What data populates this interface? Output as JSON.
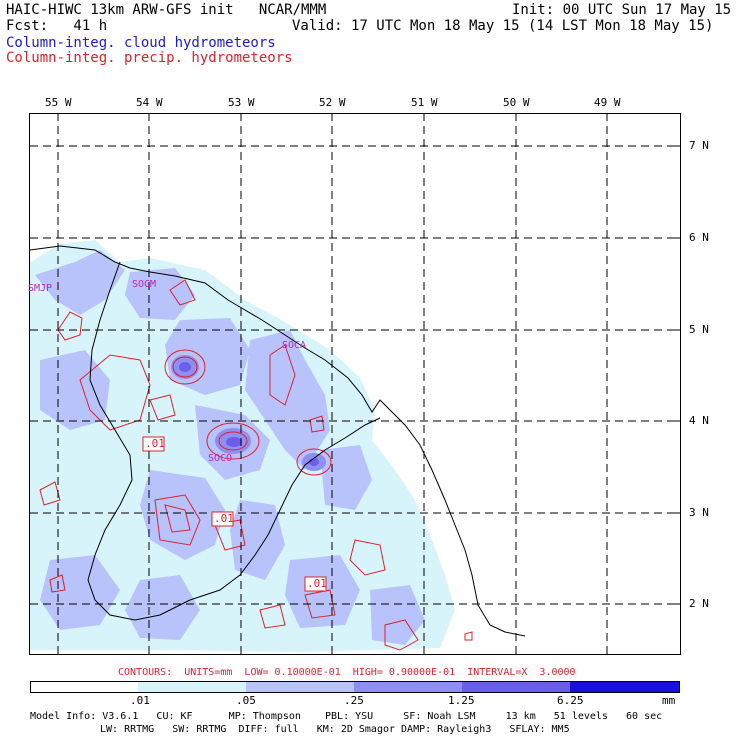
{
  "header": {
    "line1_left": "HAIC-HIWC 13km ARW-GFS init   NCAR/MMM",
    "line1_right": "Init: 00 UTC Sun 17 May 15",
    "line2_left": "Fcst:   41 h",
    "line2_right": "Valid: 17 UTC Mon 18 May 15 (14 LST Mon 18 May 15)",
    "field_cloud": "Column-integ. cloud hydrometeors",
    "field_precip": "Column-integ. precip. hydrometeors"
  },
  "map": {
    "lon_labels": [
      "55 W",
      "54 W",
      "53 W",
      "52 W",
      "51 W",
      "50 W",
      "49 W"
    ],
    "lat_labels": [
      "7 N",
      "6 N",
      "5 N",
      "4 N",
      "3 N",
      "2 N"
    ],
    "stations": [
      "SMJP",
      "SOCM",
      "SOCA",
      "SOCO"
    ],
    "contour_labels": [
      ".01",
      ".01",
      ".01"
    ]
  },
  "contours_note": "CONTOURS:  UNITS=mm  LOW= 0.10000E-01  HIGH= 0.90000E-01  INTERVAL=X  3.0000",
  "colorbar": {
    "ticks": [
      ".01",
      ".05",
      ".25",
      "1.25",
      "6.25"
    ],
    "unit": "mm",
    "colors": [
      "#ffffff",
      "#d8f4fb",
      "#b8c3fb",
      "#8f8ff3",
      "#6b5ee8",
      "#1a10e0"
    ]
  },
  "model_info": {
    "line1": "Model Info: V3.6.1   CU: KF      MP: Thompson    PBL: YSU     SF: Noah LSM     13 km   51 levels   60 sec",
    "line2": "LW: RRTMG   SW: RRTMG  DIFF: full   KM: 2D Smagor DAMP: Rayleigh3   SFLAY: MM5"
  }
}
